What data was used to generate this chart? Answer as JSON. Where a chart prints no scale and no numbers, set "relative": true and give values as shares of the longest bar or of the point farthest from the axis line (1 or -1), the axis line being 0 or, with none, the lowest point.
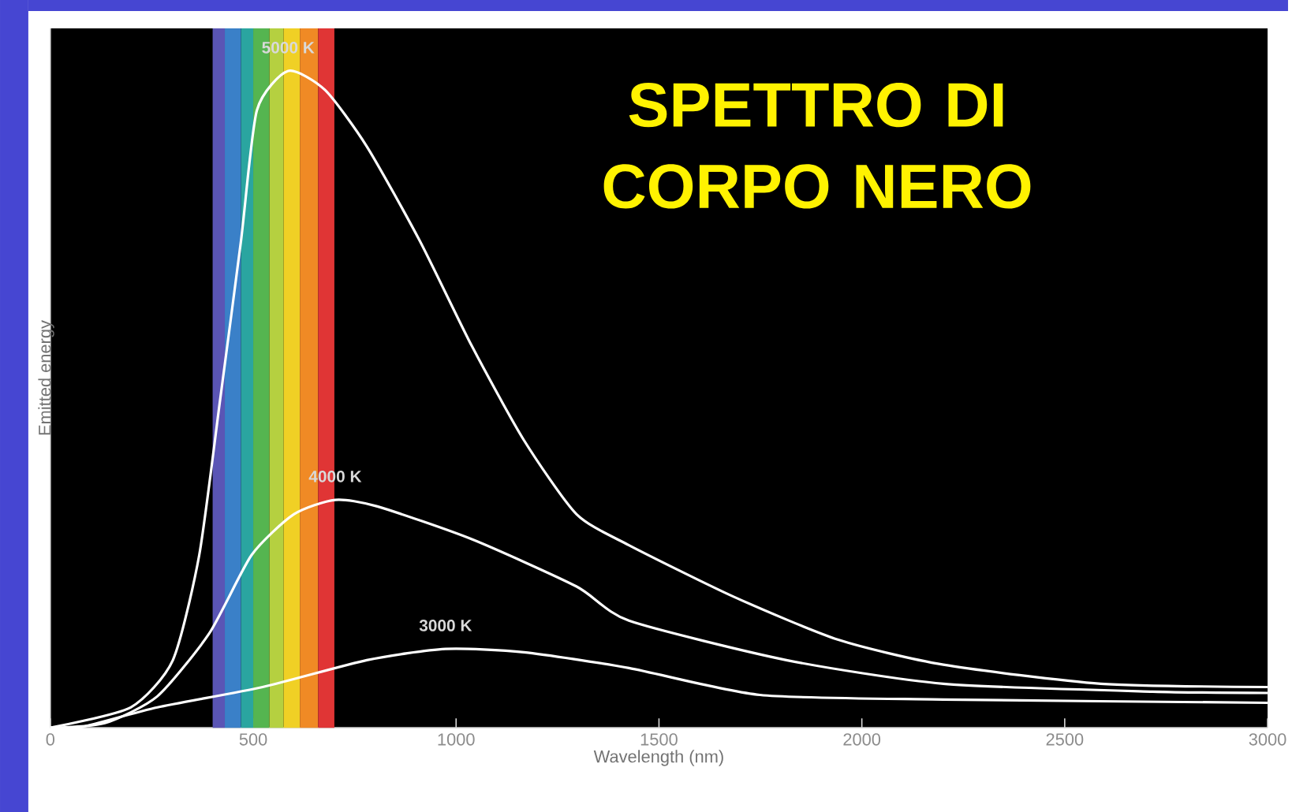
{
  "chart_data": {
    "type": "line",
    "title": "SPETTRO DI CORPO NERO",
    "xlabel": "Wavelength (nm)",
    "ylabel": "Emitted energy",
    "relative": true,
    "xlim": [
      0,
      3000
    ],
    "xticks": [
      0,
      500,
      1000,
      1500,
      2000,
      2500,
      3000
    ],
    "line_style": "solid",
    "marker": "none",
    "bands": [
      {
        "axis": "x",
        "from": 400,
        "to": 430,
        "color": "#5a55b5"
      },
      {
        "axis": "x",
        "from": 430,
        "to": 470,
        "color": "#3a80c8"
      },
      {
        "axis": "x",
        "from": 470,
        "to": 500,
        "color": "#2aa5a0"
      },
      {
        "axis": "x",
        "from": 500,
        "to": 540,
        "color": "#55b550"
      },
      {
        "axis": "x",
        "from": 540,
        "to": 575,
        "color": "#b5d040"
      },
      {
        "axis": "x",
        "from": 575,
        "to": 615,
        "color": "#f0d025"
      },
      {
        "axis": "x",
        "from": 615,
        "to": 660,
        "color": "#f08a25"
      },
      {
        "axis": "x",
        "from": 660,
        "to": 700,
        "color": "#e03535"
      }
    ],
    "series": [
      {
        "name": "5000 K",
        "color": "#ffffff",
        "x": [
          0,
          198,
          302,
          367,
          419,
          470,
          509,
          586,
          677,
          780,
          910,
          1039,
          1167,
          1297,
          1426,
          1686,
          1942,
          2201,
          2589,
          3000
        ],
        "values": [
          0,
          0.031,
          0.103,
          0.263,
          0.502,
          0.742,
          0.94,
          1,
          0.971,
          0.885,
          0.742,
          0.581,
          0.438,
          0.325,
          0.278,
          0.199,
          0.134,
          0.096,
          0.067,
          0.062
        ]
      },
      {
        "name": "4000 K",
        "color": "#ffffff",
        "x": [
          0,
          134,
          264,
          392,
          496,
          600,
          702,
          806,
          1039,
          1297,
          1426,
          1814,
          2201,
          2717,
          3000
        ],
        "values": [
          0,
          0.007,
          0.048,
          0.144,
          0.263,
          0.325,
          0.347,
          0.337,
          0.287,
          0.215,
          0.163,
          0.103,
          0.067,
          0.055,
          0.053
        ]
      },
      {
        "name": "3000 K",
        "color": "#ffffff",
        "x": [
          0,
          70,
          264,
          523,
          780,
          974,
          1167,
          1426,
          1749,
          2201,
          3000
        ],
        "values": [
          0,
          0,
          0.031,
          0.062,
          0.103,
          0.12,
          0.115,
          0.091,
          0.05,
          0.043,
          0.038
        ]
      }
    ]
  }
}
